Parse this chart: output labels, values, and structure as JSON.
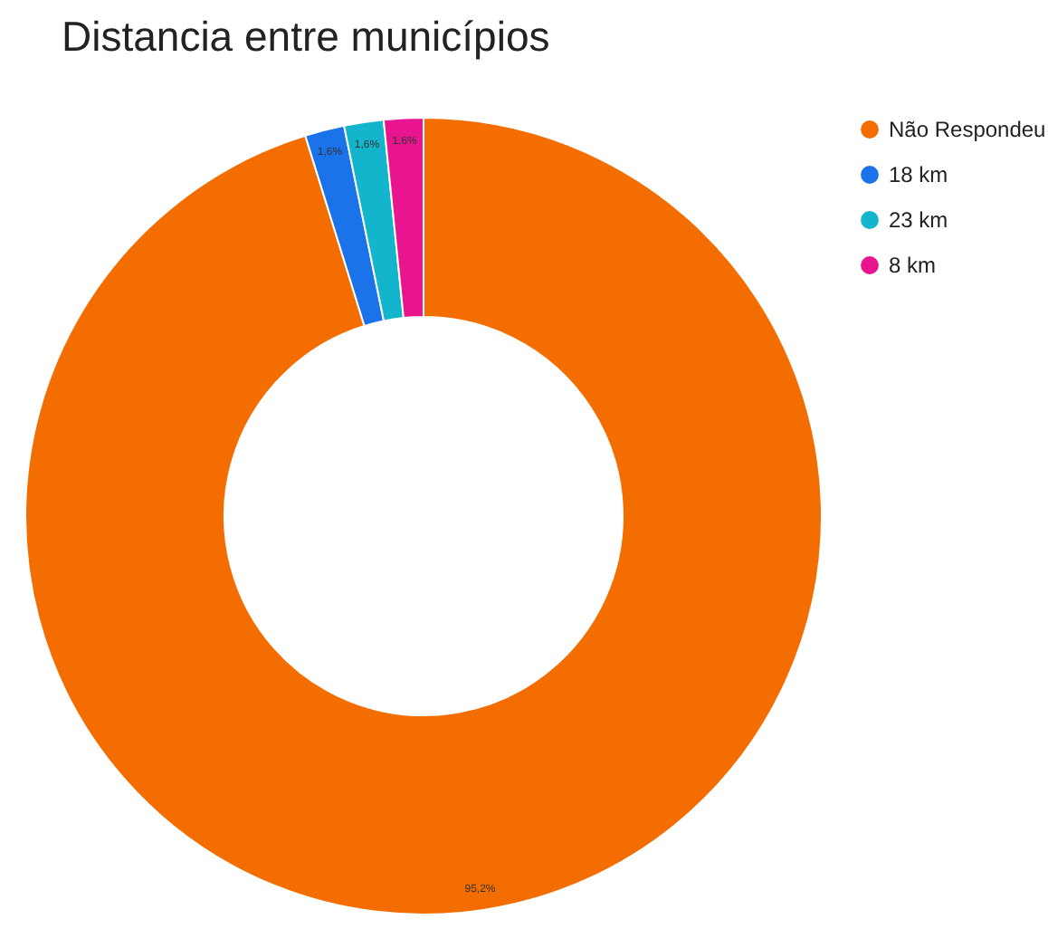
{
  "chart_data": {
    "type": "donut",
    "title": "Distancia entre municípios",
    "categories": [
      "Não Respondeu",
      "18 km",
      "23 km",
      "8 km"
    ],
    "values": [
      95.2,
      1.6,
      1.6,
      1.6
    ],
    "colors": [
      "#f46d00",
      "#1a73e8",
      "#12b5cb",
      "#e8158f"
    ],
    "value_labels": [
      "95,2%",
      "1,6%",
      "1,6%",
      "1,6%"
    ],
    "legend": "right"
  }
}
